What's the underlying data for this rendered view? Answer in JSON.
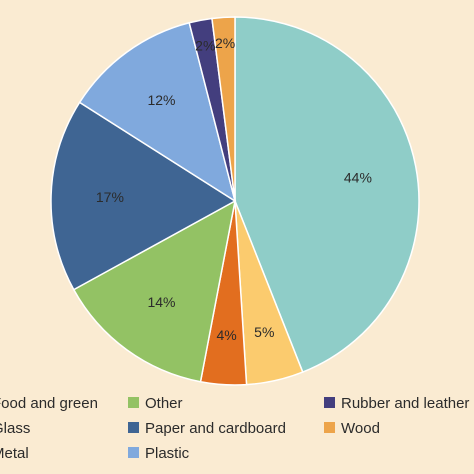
{
  "chart_data": {
    "type": "pie",
    "title": "",
    "slices": [
      {
        "label": "Food and green",
        "value": 44,
        "display": "44%",
        "color": "#8fcdc8"
      },
      {
        "label": "Glass",
        "value": 5,
        "display": "5%",
        "color": "#fbcb6e"
      },
      {
        "label": "Metal",
        "value": 4,
        "display": "4%",
        "color": "#e26e1f"
      },
      {
        "label": "Other",
        "value": 14,
        "display": "14%",
        "color": "#93c264"
      },
      {
        "label": "Paper and cardboard",
        "value": 17,
        "display": "17%",
        "color": "#3f6593"
      },
      {
        "label": "Plastic",
        "value": 12,
        "display": "12%",
        "color": "#80a9dd"
      },
      {
        "label": "Rubber and leather",
        "value": 2,
        "display": "2%",
        "color": "#433e7e"
      },
      {
        "label": "Wood",
        "value": 2,
        "display": "2%",
        "color": "#eda44a"
      }
    ],
    "legend": {
      "placement": "bottom",
      "entries": [
        {
          "label": "Food and green",
          "color": "#8fcdc8"
        },
        {
          "label": "Other",
          "color": "#93c264"
        },
        {
          "label": "Rubber and leather",
          "color": "#433e7e"
        },
        {
          "label": "Glass",
          "color": "#fbcb6e"
        },
        {
          "label": "Paper and cardboard",
          "color": "#3f6593"
        },
        {
          "label": "Wood",
          "color": "#eda44a"
        },
        {
          "label": "Metal",
          "color": "#e26e1f"
        },
        {
          "label": "Plastic",
          "color": "#80a9dd"
        }
      ]
    }
  }
}
